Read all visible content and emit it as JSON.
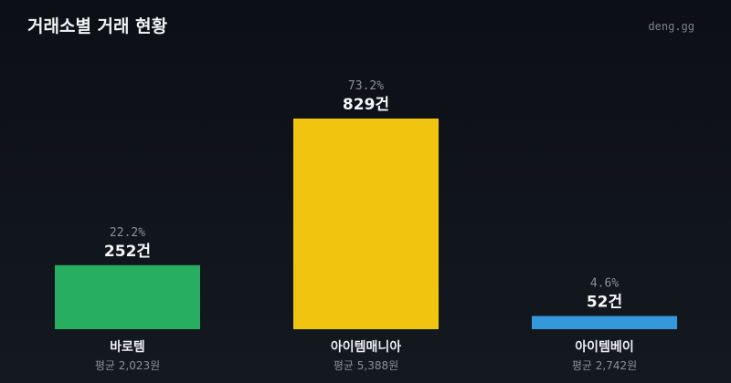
{
  "header": {
    "title": "거래소별 거래 현황",
    "brand": "deng.gg"
  },
  "chart_data": {
    "type": "bar",
    "title": "거래소별 거래 현황",
    "categories": [
      "바로템",
      "아이템매니아",
      "아이템베이"
    ],
    "values": [
      252,
      829,
      52
    ],
    "value_labels": [
      "252건",
      "829건",
      "52건"
    ],
    "percent_labels": [
      "22.2%",
      "73.2%",
      "4.6%"
    ],
    "sub_labels": [
      "평균 2,023원",
      "평균 5,388원",
      "평균 2,742원"
    ],
    "colors": [
      "#27ae60",
      "#f1c40f",
      "#3498db"
    ],
    "ylim": [
      0,
      829
    ],
    "grid": false
  }
}
